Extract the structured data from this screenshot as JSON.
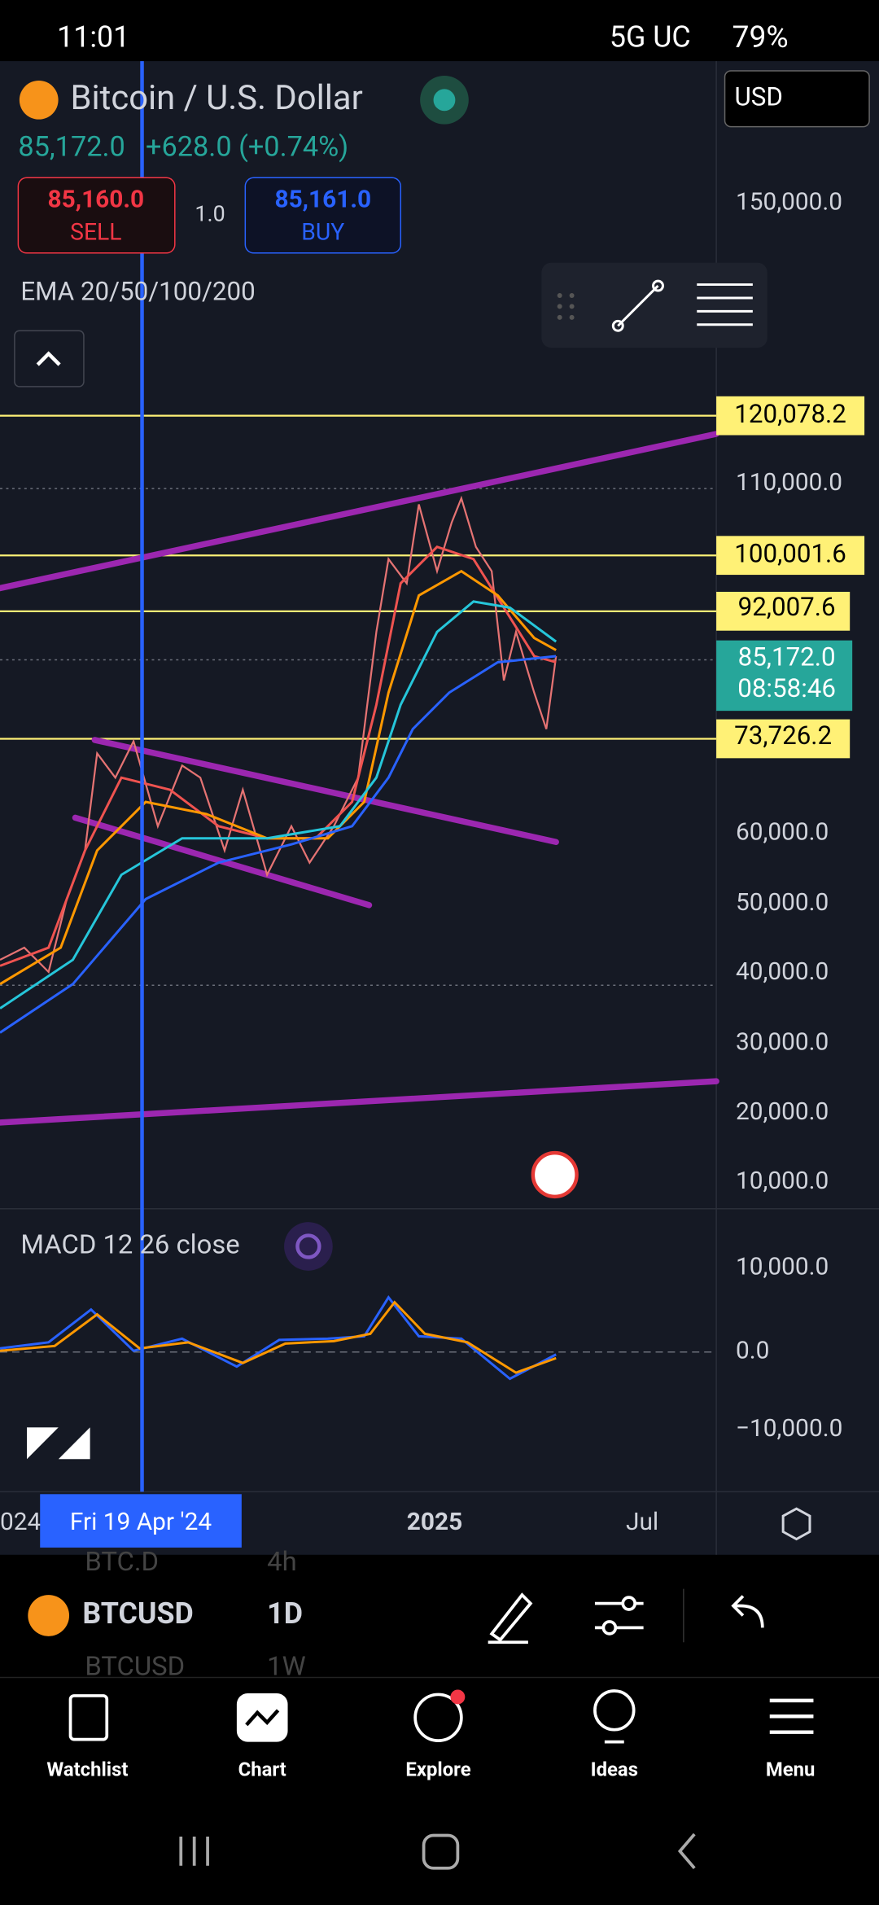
{
  "status_bar": {
    "time": "11:01",
    "network": "5G UC",
    "battery": "79%"
  },
  "header": {
    "symbol_name": "Bitcoin / U.S. Dollar",
    "last_price": "85,172.0",
    "change": "+628.0 (+0.74%)",
    "currency": "USD",
    "sell": {
      "price": "85,160.0",
      "label": "SELL"
    },
    "quantity": "1.0",
    "buy": {
      "price": "85,161.0",
      "label": "BUY"
    },
    "indicator": "EMA 20/50/100/200"
  },
  "price_axis": [
    "150,000.0",
    "110,000.0",
    "60,000.0",
    "50,000.0",
    "40,000.0",
    "30,000.0",
    "20,000.0",
    "10,000.0"
  ],
  "level_labels": [
    "120,078.2",
    "100,001.6",
    "92,007.6",
    "73,726.2"
  ],
  "current_price": {
    "price": "85,172.0",
    "countdown": "08:58:46"
  },
  "macd": {
    "label": "MACD 12 26 close",
    "axis": [
      "10,000.0",
      "0.0",
      "−10,000.0"
    ]
  },
  "time_axis": {
    "labels": [
      "024",
      "2025",
      "Jul"
    ],
    "crosshair_date": "Fri 19 Apr '24"
  },
  "toolbar": {
    "symbol": "BTCUSD",
    "interval": "1D",
    "faded_above": [
      "BTC.D",
      "4h"
    ],
    "faded_below": [
      "BTCUSD",
      "1W"
    ]
  },
  "bottom_nav": [
    "Watchlist",
    "Chart",
    "Explore",
    "Ideas",
    "Menu"
  ]
}
